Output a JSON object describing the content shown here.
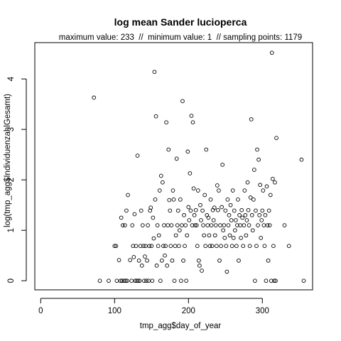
{
  "chart_data": {
    "type": "scatter",
    "title": "log mean Sander lucioperca",
    "subtitle": "maximum value: 233  //  minimum value: 1  // sampling points: 1179",
    "xlabel": "tmp_agg$day_of_year",
    "ylabel": "log(tmp_agg$IndividuenzahlGesamt)",
    "xlim": [
      -8,
      368
    ],
    "ylim": [
      -0.18,
      4.72
    ],
    "xticks": [
      0,
      100,
      200,
      300
    ],
    "xtick_labels": [
      "0",
      "100",
      "200",
      "300"
    ],
    "yticks": [
      0,
      1,
      2,
      3,
      4
    ],
    "ytick_labels": [
      "0",
      "1",
      "2",
      "3",
      "4"
    ],
    "grid": false,
    "marker": "open-circle",
    "colors": {
      "points": "#000000",
      "axes": "#000000",
      "background": "#ffffff"
    },
    "points": [
      [
        72,
        3.63
      ],
      [
        80,
        0
      ],
      [
        92,
        0
      ],
      [
        100,
        0.69
      ],
      [
        102,
        0.69
      ],
      [
        103,
        0
      ],
      [
        106,
        0.41
      ],
      [
        108,
        0
      ],
      [
        109,
        1.25
      ],
      [
        110,
        0
      ],
      [
        111,
        1.1
      ],
      [
        113,
        0
      ],
      [
        114,
        1.1
      ],
      [
        115,
        0
      ],
      [
        116,
        1.39
      ],
      [
        117,
        0
      ],
      [
        118,
        1.7
      ],
      [
        121,
        0.41
      ],
      [
        123,
        0
      ],
      [
        124,
        1.1
      ],
      [
        125,
        0.69
      ],
      [
        126,
        0.47
      ],
      [
        127,
        1.32
      ],
      [
        128,
        0
      ],
      [
        129,
        0.69
      ],
      [
        130,
        0
      ],
      [
        131,
        2.48
      ],
      [
        132,
        0
      ],
      [
        133,
        0.4
      ],
      [
        134,
        0
      ],
      [
        135,
        0.69
      ],
      [
        136,
        1.39
      ],
      [
        137,
        0.3
      ],
      [
        138,
        1.1
      ],
      [
        139,
        0.69
      ],
      [
        140,
        0
      ],
      [
        141,
        0.48
      ],
      [
        142,
        0.69
      ],
      [
        143,
        0
      ],
      [
        144,
        0.4
      ],
      [
        145,
        1.1
      ],
      [
        146,
        0
      ],
      [
        147,
        0.69
      ],
      [
        148,
        1.39
      ],
      [
        149,
        1.45
      ],
      [
        150,
        0.69
      ],
      [
        151,
        0
      ],
      [
        152,
        1.25
      ],
      [
        153,
        0.84
      ],
      [
        154,
        4.14
      ],
      [
        155,
        1.61
      ],
      [
        156,
        3.26
      ],
      [
        157,
        0.3
      ],
      [
        158,
        1.1
      ],
      [
        159,
        0.69
      ],
      [
        160,
        0.9
      ],
      [
        161,
        1.79
      ],
      [
        162,
        0
      ],
      [
        163,
        2.08
      ],
      [
        164,
        0.4
      ],
      [
        165,
        1.95
      ],
      [
        166,
        0.69
      ],
      [
        167,
        1.1
      ],
      [
        168,
        0.5
      ],
      [
        169,
        0.69
      ],
      [
        170,
        3.14
      ],
      [
        171,
        0.3
      ],
      [
        172,
        1.1
      ],
      [
        173,
        2.6
      ],
      [
        174,
        1.6
      ],
      [
        175,
        1.39
      ],
      [
        176,
        0.69
      ],
      [
        177,
        1.1
      ],
      [
        178,
        0.4
      ],
      [
        179,
        1.79
      ],
      [
        180,
        1.61
      ],
      [
        181,
        0
      ],
      [
        182,
        0.69
      ],
      [
        183,
        0.9
      ],
      [
        184,
        2.42
      ],
      [
        185,
        1.1
      ],
      [
        186,
        1.39
      ],
      [
        187,
        0.69
      ],
      [
        188,
        1
      ],
      [
        189,
        1.61
      ],
      [
        190,
        0
      ],
      [
        191,
        1.1
      ],
      [
        192,
        3.56
      ],
      [
        193,
        0.4
      ],
      [
        194,
        1.3
      ],
      [
        195,
        0.69
      ],
      [
        196,
        1.1
      ],
      [
        197,
        0
      ],
      [
        198,
        0.9
      ],
      [
        199,
        2.56
      ],
      [
        200,
        1.46
      ],
      [
        201,
        1.2
      ],
      [
        202,
        2.13
      ],
      [
        203,
        1.39
      ],
      [
        204,
        3.27
      ],
      [
        205,
        1.1
      ],
      [
        206,
        3.14
      ],
      [
        207,
        1.83
      ],
      [
        208,
        1.3
      ],
      [
        209,
        1.1
      ],
      [
        210,
        1.4
      ],
      [
        211,
        1.1
      ],
      [
        212,
        0.69
      ],
      [
        213,
        1.79
      ],
      [
        214,
        0.4
      ],
      [
        215,
        0.3
      ],
      [
        216,
        1.5
      ],
      [
        217,
        1.2
      ],
      [
        218,
        0.2
      ],
      [
        219,
        1.39
      ],
      [
        220,
        1.1
      ],
      [
        221,
        0.9
      ],
      [
        222,
        1.7
      ],
      [
        223,
        0.69
      ],
      [
        224,
        2.6
      ],
      [
        225,
        1.3
      ],
      [
        226,
        1.1
      ],
      [
        227,
        1.25
      ],
      [
        228,
        0.9
      ],
      [
        229,
        0.69
      ],
      [
        230,
        1.61
      ],
      [
        231,
        1.1
      ],
      [
        232,
        0.69
      ],
      [
        233,
        1.4
      ],
      [
        234,
        1.2
      ],
      [
        235,
        1.45
      ],
      [
        236,
        0.9
      ],
      [
        237,
        1.1
      ],
      [
        238,
        0.69
      ],
      [
        239,
        1.89
      ],
      [
        240,
        1.4
      ],
      [
        241,
        1.79
      ],
      [
        242,
        0.4
      ],
      [
        243,
        1.1
      ],
      [
        244,
        0.69
      ],
      [
        245,
        1.46
      ],
      [
        246,
        2.3
      ],
      [
        247,
        1
      ],
      [
        248,
        1.1
      ],
      [
        249,
        0.85
      ],
      [
        250,
        1.39
      ],
      [
        251,
        0.69
      ],
      [
        252,
        0.18
      ],
      [
        253,
        1.61
      ],
      [
        254,
        1.1
      ],
      [
        255,
        1.3
      ],
      [
        256,
        0.9
      ],
      [
        257,
        1.5
      ],
      [
        258,
        1.2
      ],
      [
        259,
        0.69
      ],
      [
        260,
        1.79
      ],
      [
        261,
        0.85
      ],
      [
        262,
        1.39
      ],
      [
        263,
        1
      ],
      [
        264,
        1.2
      ],
      [
        265,
        0.69
      ],
      [
        266,
        1.1
      ],
      [
        267,
        1.61
      ],
      [
        268,
        0.4
      ],
      [
        269,
        1.3
      ],
      [
        270,
        1.1
      ],
      [
        271,
        0.85
      ],
      [
        272,
        1.4
      ],
      [
        273,
        1.25
      ],
      [
        274,
        0.69
      ],
      [
        275,
        1.1
      ],
      [
        276,
        1.79
      ],
      [
        277,
        1.3
      ],
      [
        278,
        0.9
      ],
      [
        279,
        1.2
      ],
      [
        280,
        1.95
      ],
      [
        281,
        1.4
      ],
      [
        282,
        1.1
      ],
      [
        283,
        0.69
      ],
      [
        284,
        1.65
      ],
      [
        285,
        3.2
      ],
      [
        286,
        1.3
      ],
      [
        287,
        1
      ],
      [
        288,
        1.61
      ],
      [
        289,
        2.2
      ],
      [
        290,
        0
      ],
      [
        291,
        1.39
      ],
      [
        292,
        0.69
      ],
      [
        293,
        2.6
      ],
      [
        294,
        1.1
      ],
      [
        295,
        2.4
      ],
      [
        296,
        1.3
      ],
      [
        297,
        1.9
      ],
      [
        298,
        0.85
      ],
      [
        299,
        1.2
      ],
      [
        300,
        1.39
      ],
      [
        301,
        1.79
      ],
      [
        302,
        1.1
      ],
      [
        303,
        0.69
      ],
      [
        304,
        1.3
      ],
      [
        305,
        0
      ],
      [
        306,
        1.87
      ],
      [
        307,
        1.1
      ],
      [
        308,
        0.4
      ],
      [
        309,
        1.39
      ],
      [
        310,
        1.1
      ],
      [
        311,
        1.7
      ],
      [
        312,
        0
      ],
      [
        313,
        4.52
      ],
      [
        314,
        2.02
      ],
      [
        315,
        0.69
      ],
      [
        316,
        0
      ],
      [
        317,
        1.95
      ],
      [
        318,
        0
      ],
      [
        319,
        2.83
      ],
      [
        330,
        1.1
      ],
      [
        336,
        0.69
      ],
      [
        353,
        2.4
      ],
      [
        356,
        0
      ]
    ]
  }
}
